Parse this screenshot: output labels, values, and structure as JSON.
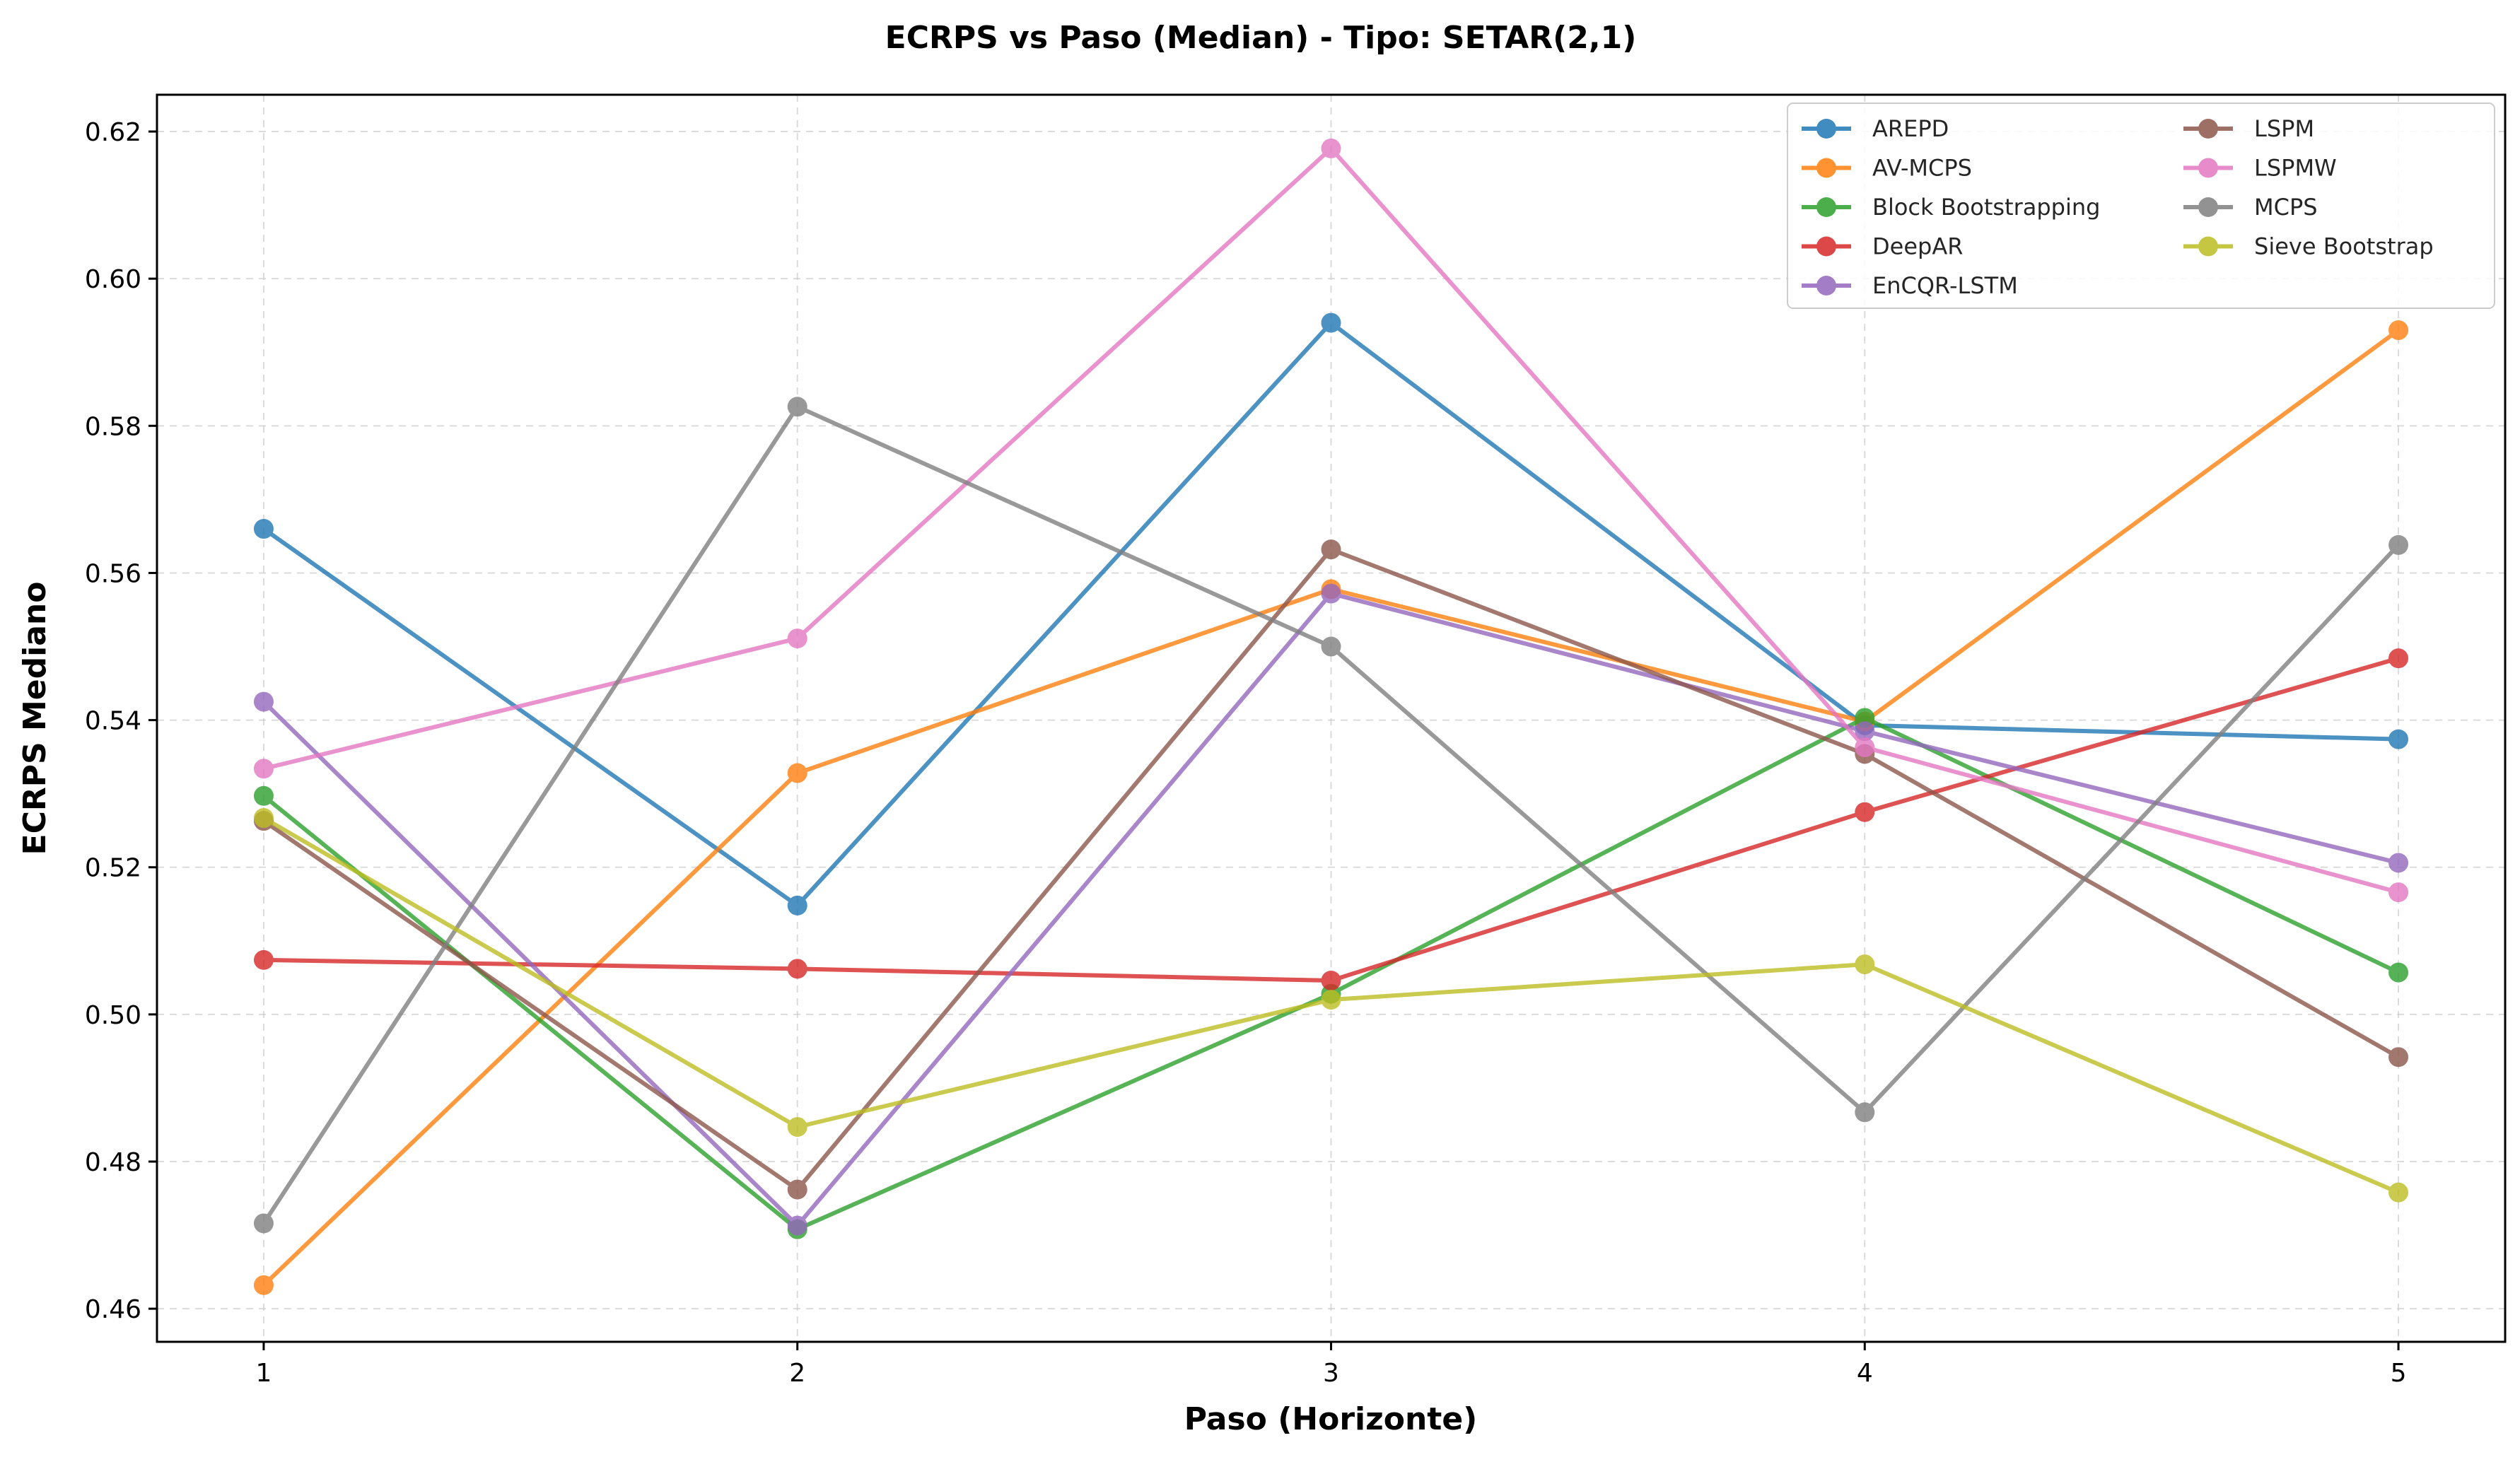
{
  "chart_data": {
    "type": "line",
    "title": "ECRPS vs Paso (Median) - Tipo: SETAR(2,1)",
    "xlabel": "Paso (Horizonte)",
    "ylabel": "ECRPS Mediano",
    "x": [
      1,
      2,
      3,
      4,
      5
    ],
    "xlim": [
      0.8,
      5.2
    ],
    "ylim": [
      0.4555,
      0.625
    ],
    "yticks": [
      0.46,
      0.48,
      0.5,
      0.52,
      0.54,
      0.56,
      0.58,
      0.6,
      0.62
    ],
    "ytick_labels": [
      "0.46",
      "0.48",
      "0.50",
      "0.52",
      "0.54",
      "0.56",
      "0.58",
      "0.60",
      "0.62"
    ],
    "xtick_labels": [
      "1",
      "2",
      "3",
      "4",
      "5"
    ],
    "grid": true,
    "legend_position": "top-right",
    "series": [
      {
        "name": "AREPD",
        "color": "#1f77b4",
        "values": [
          0.566,
          0.5148,
          0.594,
          0.5393,
          0.5374
        ]
      },
      {
        "name": "AV-MCPS",
        "color": "#ff7f0e",
        "values": [
          0.4632,
          0.5328,
          0.5578,
          0.5398,
          0.593
        ]
      },
      {
        "name": "Block Bootstrapping",
        "color": "#2ca02c",
        "values": [
          0.5297,
          0.4708,
          0.5028,
          0.5403,
          0.5057
        ]
      },
      {
        "name": "DeepAR",
        "color": "#d62728",
        "values": [
          0.5074,
          0.5062,
          0.5046,
          0.5275,
          0.5484
        ]
      },
      {
        "name": "EnCQR-LSTM",
        "color": "#9467bd",
        "values": [
          0.5425,
          0.4713,
          0.5572,
          0.5385,
          0.5206
        ]
      },
      {
        "name": "LSPM",
        "color": "#8c564b",
        "values": [
          0.5263,
          0.4762,
          0.5632,
          0.5354,
          0.4942
        ]
      },
      {
        "name": "LSPMW",
        "color": "#e377c2",
        "values": [
          0.5334,
          0.5511,
          0.6177,
          0.5363,
          0.5166
        ]
      },
      {
        "name": "MCPS",
        "color": "#7f7f7f",
        "values": [
          0.4716,
          0.5826,
          0.55,
          0.4867,
          0.5638
        ]
      },
      {
        "name": "Sieve Bootstrap",
        "color": "#bcbd22",
        "values": [
          0.5267,
          0.4847,
          0.502,
          0.5068,
          0.4758
        ]
      }
    ]
  }
}
